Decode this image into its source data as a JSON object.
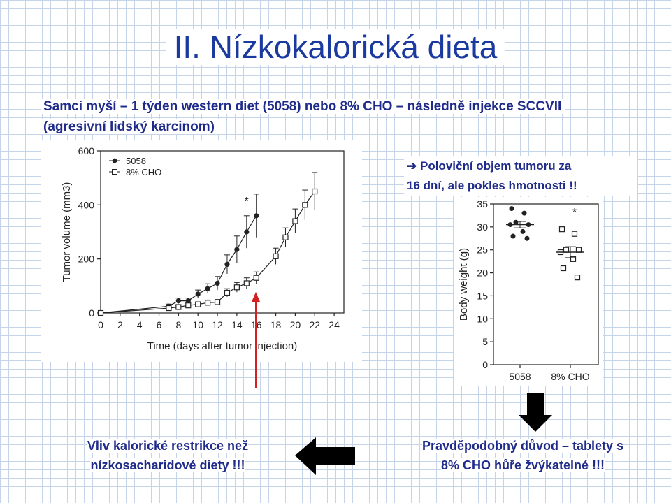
{
  "title": "II. Nízkokalorická dieta",
  "subtitle": {
    "line1": "Samci myší – 1 týden western diet (5058) nebo 8% CHO – následně injekce SCCVII",
    "line2": "(agresivní  lidský karcinom)"
  },
  "note": {
    "arrow": "➔",
    "line1": "Poloviční objem tumoru za",
    "line2": "16 dní, ale pokles hmotnosti !!"
  },
  "bottom_left": {
    "line1": "Vliv kalorické restrikce než",
    "line2": "nízkosacharidové diety !!!"
  },
  "bottom_right": {
    "line1": "Pravděpodobný důvod – tablety s",
    "line2": "8% CHO hůře žvýkatelné !!!"
  },
  "colors": {
    "title": "#1a3aa0",
    "text": "#1f2b8a",
    "marker_arrow": "#d42020",
    "block_arrow": "#000000"
  },
  "chart_data": [
    {
      "type": "line",
      "xlabel": "Time (days after tumor injection)",
      "ylabel": "Tumor volume (mm3)",
      "xlim": [
        0,
        25
      ],
      "ylim": [
        0,
        600
      ],
      "xticks": [
        "0",
        "2",
        "4",
        "6",
        "8",
        "10",
        "12",
        "14",
        "16",
        "18",
        "20",
        "22",
        "24"
      ],
      "yticks": [
        "0",
        "200",
        "400",
        "600"
      ],
      "significance": "*",
      "legend_position": "top-left",
      "series": [
        {
          "name": "5058",
          "marker": "filled-circle",
          "x": [
            0,
            7,
            8,
            9,
            10,
            11,
            12,
            13,
            14,
            15,
            16
          ],
          "y": [
            0,
            25,
            45,
            45,
            70,
            90,
            110,
            180,
            235,
            300,
            360
          ],
          "err": [
            0,
            8,
            10,
            10,
            15,
            18,
            25,
            35,
            50,
            60,
            80
          ]
        },
        {
          "name": "8% CHO",
          "marker": "open-square",
          "x": [
            0,
            7,
            8,
            9,
            10,
            11,
            12,
            13,
            14,
            15,
            16,
            18,
            19,
            20,
            21,
            22
          ],
          "y": [
            0,
            18,
            22,
            28,
            32,
            38,
            40,
            75,
            95,
            110,
            130,
            210,
            280,
            340,
            400,
            450
          ],
          "err": [
            0,
            6,
            6,
            8,
            8,
            10,
            10,
            15,
            18,
            20,
            22,
            30,
            35,
            45,
            55,
            70
          ]
        }
      ]
    },
    {
      "type": "scatter",
      "ylabel": "Body weight (g)",
      "ylim": [
        0,
        35
      ],
      "yticks": [
        "0",
        "5",
        "10",
        "15",
        "20",
        "25",
        "30",
        "35"
      ],
      "categories": [
        "5058",
        "8% CHO"
      ],
      "significance": "*",
      "series": [
        {
          "name": "5058",
          "marker": "filled-circle",
          "values": [
            34,
            33,
            31,
            30.5,
            30.5,
            29,
            28,
            27.5
          ],
          "mean": 30.5,
          "sem": 0.7
        },
        {
          "name": "8% CHO",
          "marker": "open-square",
          "values": [
            29.5,
            28.5,
            25,
            25,
            24.5,
            23,
            21,
            19
          ],
          "mean": 24.5,
          "sem": 1.2
        }
      ]
    }
  ]
}
